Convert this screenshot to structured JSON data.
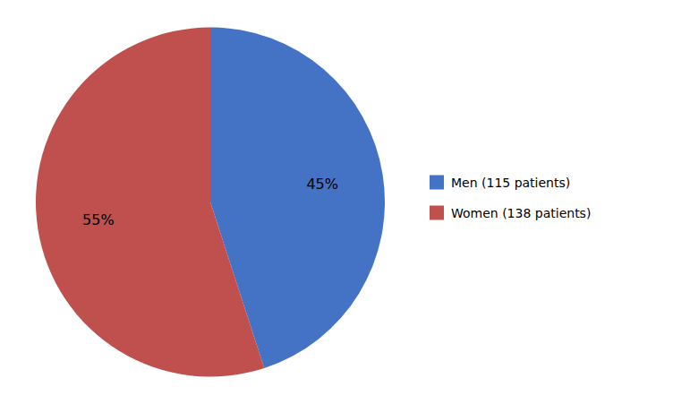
{
  "chart_data": {
    "type": "pie",
    "categories": [
      "Men (115 patients)",
      "Women (138 patients)"
    ],
    "values": [
      45,
      55
    ],
    "value_labels": [
      "45%",
      "55%"
    ],
    "colors": [
      "#4472C4",
      "#C0504D"
    ],
    "data_labels": true,
    "legend": "right"
  }
}
